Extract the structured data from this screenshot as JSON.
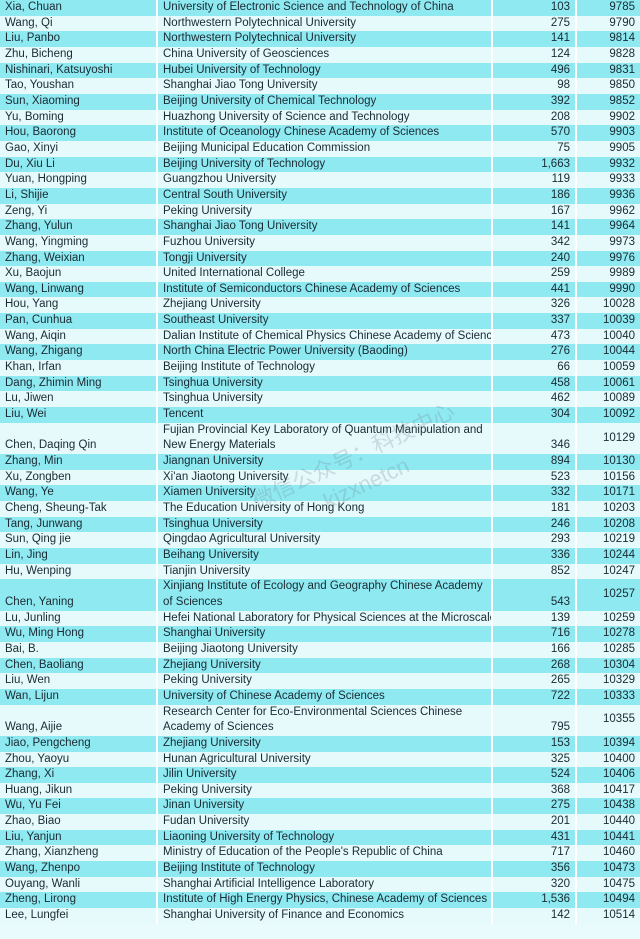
{
  "watermark": {
    "line1": "微信公众号：科技中心",
    "line2": "kjzxnetcn"
  },
  "rows": [
    {
      "name": "Xia, Chuan",
      "institution": "University of Electronic Science and Technology of China",
      "count": "103",
      "rank": "9785"
    },
    {
      "name": "Wang, Qi",
      "institution": "Northwestern Polytechnical University",
      "count": "275",
      "rank": "9790"
    },
    {
      "name": "Liu, Panbo",
      "institution": "Northwestern Polytechnical University",
      "count": "141",
      "rank": "9814"
    },
    {
      "name": "Zhu, Bicheng",
      "institution": "China University of Geosciences",
      "count": "124",
      "rank": "9828"
    },
    {
      "name": "Nishinari, Katsuyoshi",
      "institution": "Hubei University of Technology",
      "count": "496",
      "rank": "9831"
    },
    {
      "name": "Tao, Youshan",
      "institution": "Shanghai Jiao Tong University",
      "count": "98",
      "rank": "9850"
    },
    {
      "name": "Sun, Xiaoming",
      "institution": "Beijing University of Chemical Technology",
      "count": "392",
      "rank": "9852"
    },
    {
      "name": "Yu, Boming",
      "institution": "Huazhong University of Science and Technology",
      "count": "208",
      "rank": "9902"
    },
    {
      "name": "Hou, Baorong",
      "institution": "Institute of Oceanology Chinese Academy of Sciences",
      "count": "570",
      "rank": "9903"
    },
    {
      "name": "Gao, Xinyi",
      "institution": "Beijing Municipal Education Commission",
      "count": "75",
      "rank": "9905"
    },
    {
      "name": "Du, Xiu Li",
      "institution": "Beijing University of Technology",
      "count": "1,663",
      "rank": "9932"
    },
    {
      "name": "Yuan, Hongping",
      "institution": "Guangzhou University",
      "count": "119",
      "rank": "9933"
    },
    {
      "name": "Li, Shijie",
      "institution": "Central South University",
      "count": "186",
      "rank": "9936"
    },
    {
      "name": "Zeng, Yi",
      "institution": "Peking University",
      "count": "167",
      "rank": "9962"
    },
    {
      "name": "Zhang, Yulun",
      "institution": "Shanghai Jiao Tong University",
      "count": "141",
      "rank": "9964"
    },
    {
      "name": "Wang, Yingming",
      "institution": "Fuzhou University",
      "count": "342",
      "rank": "9973"
    },
    {
      "name": "Zhang, Weixian",
      "institution": "Tongji University",
      "count": "240",
      "rank": "9976"
    },
    {
      "name": "Xu, Baojun",
      "institution": "United International College",
      "count": "259",
      "rank": "9989"
    },
    {
      "name": "Wang, Linwang",
      "institution": "Institute of Semiconductors Chinese Academy of Sciences",
      "count": "441",
      "rank": "9990"
    },
    {
      "name": "Hou, Yang",
      "institution": "Zhejiang University",
      "count": "326",
      "rank": "10028"
    },
    {
      "name": "Pan, Cunhua",
      "institution": "Southeast University",
      "count": "337",
      "rank": "10039"
    },
    {
      "name": "Wang, Aiqin",
      "institution": "Dalian Institute of Chemical Physics Chinese Academy of Sciences",
      "count": "473",
      "rank": "10040"
    },
    {
      "name": "Wang, Zhigang",
      "institution": "North China Electric Power University (Baoding)",
      "count": "276",
      "rank": "10044"
    },
    {
      "name": "Khan, Irfan",
      "institution": "Beijing Institute of Technology",
      "count": "66",
      "rank": "10059"
    },
    {
      "name": "Dang, Zhimin Ming",
      "institution": "Tsinghua University",
      "count": "458",
      "rank": "10061"
    },
    {
      "name": "Lu, Jiwen",
      "institution": "Tsinghua University",
      "count": "462",
      "rank": "10089"
    },
    {
      "name": "Liu, Wei",
      "institution": "Tencent",
      "count": "304",
      "rank": "10092"
    },
    {
      "name": "Chen, Daqing Qin",
      "institution": "Fujian Provincial Key Laboratory of Quantum Manipulation and New Energy Materials",
      "count": "346",
      "rank": "10129",
      "tall": true
    },
    {
      "name": "Zhang, Min",
      "institution": "Jiangnan University",
      "count": "894",
      "rank": "10130"
    },
    {
      "name": "Xu, Zongben",
      "institution": "Xi'an Jiaotong University",
      "count": "523",
      "rank": "10156"
    },
    {
      "name": "Wang, Ye",
      "institution": "Xiamen University",
      "count": "332",
      "rank": "10171"
    },
    {
      "name": "Cheng, Sheung-Tak",
      "institution": "The Education University of Hong Kong",
      "count": "181",
      "rank": "10203"
    },
    {
      "name": "Tang, Junwang",
      "institution": "Tsinghua University",
      "count": "246",
      "rank": "10208"
    },
    {
      "name": "Sun, Qing jie",
      "institution": "Qingdao Agricultural University",
      "count": "293",
      "rank": "10219"
    },
    {
      "name": "Lin, Jing",
      "institution": "Beihang University",
      "count": "336",
      "rank": "10244"
    },
    {
      "name": "Hu, Wenping",
      "institution": "Tianjin University",
      "count": "852",
      "rank": "10247"
    },
    {
      "name": "Chen, Yaning",
      "institution": "Xinjiang Institute of Ecology and Geography Chinese Academy of Sciences",
      "count": "543",
      "rank": "10257",
      "tall": true
    },
    {
      "name": "Lu, Junling",
      "institution": "Hefei National Laboratory for Physical Sciences at the Microscale",
      "count": "139",
      "rank": "10259"
    },
    {
      "name": "Wu, Ming Hong",
      "institution": "Shanghai University",
      "count": "716",
      "rank": "10278"
    },
    {
      "name": "Bai, B.",
      "institution": "Beijing Jiaotong University",
      "count": "166",
      "rank": "10285"
    },
    {
      "name": "Chen, Baoliang",
      "institution": "Zhejiang University",
      "count": "268",
      "rank": "10304"
    },
    {
      "name": "Liu, Wen",
      "institution": "Peking University",
      "count": "265",
      "rank": "10329"
    },
    {
      "name": "Wan, Lijun",
      "institution": "University of Chinese Academy of Sciences",
      "count": "722",
      "rank": "10333"
    },
    {
      "name": "Wang, Aijie",
      "institution": "Research Center for Eco-Environmental Sciences Chinese Academy of Sciences",
      "count": "795",
      "rank": "10355",
      "tall": true
    },
    {
      "name": "Jiao, Pengcheng",
      "institution": "Zhejiang University",
      "count": "153",
      "rank": "10394"
    },
    {
      "name": "Zhou, Yaoyu",
      "institution": "Hunan Agricultural University",
      "count": "325",
      "rank": "10400"
    },
    {
      "name": "Zhang, Xi",
      "institution": "Jilin University",
      "count": "524",
      "rank": "10406"
    },
    {
      "name": "Huang, Jikun",
      "institution": "Peking University",
      "count": "368",
      "rank": "10417"
    },
    {
      "name": "Wu, Yu Fei",
      "institution": "Jinan University",
      "count": "275",
      "rank": "10438"
    },
    {
      "name": "Zhao, Biao",
      "institution": "Fudan University",
      "count": "201",
      "rank": "10440"
    },
    {
      "name": "Liu, Yanjun",
      "institution": "Liaoning University of Technology",
      "count": "431",
      "rank": "10441"
    },
    {
      "name": "Zhang, Xianzheng",
      "institution": "Ministry of Education of the People's Republic of China",
      "count": "717",
      "rank": "10460"
    },
    {
      "name": "Wang, Zhenpo",
      "institution": "Beijing Institute of Technology",
      "count": "356",
      "rank": "10473"
    },
    {
      "name": "Ouyang, Wanli",
      "institution": "Shanghai Artificial Intelligence Laboratory",
      "count": "320",
      "rank": "10475"
    },
    {
      "name": "Zheng, Lirong",
      "institution": "Institute of High Energy Physics, Chinese Academy of Sciences",
      "count": "1,536",
      "rank": "10494"
    },
    {
      "name": "Lee, Lungfei",
      "institution": "Shanghai University of Finance and Economics",
      "count": "142",
      "rank": "10514"
    }
  ]
}
